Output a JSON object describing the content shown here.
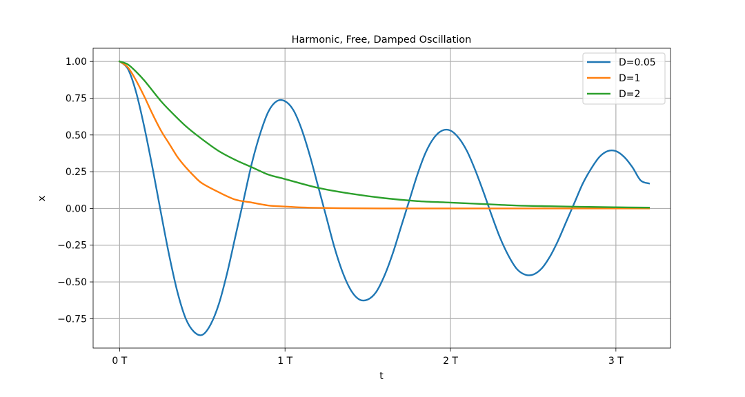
{
  "chart_data": {
    "type": "line",
    "title": "Harmonic, Free, Damped Oscillation",
    "xlabel": "t",
    "ylabel": "x",
    "xlim": [
      -0.16,
      3.33
    ],
    "ylim": [
      -0.95,
      1.09
    ],
    "xticks": [
      {
        "value": 0,
        "label": "0 T"
      },
      {
        "value": 1,
        "label": "1 T"
      },
      {
        "value": 2,
        "label": "2 T"
      },
      {
        "value": 3,
        "label": "3 T"
      }
    ],
    "yticks": [
      {
        "value": 1.0,
        "label": "1.00"
      },
      {
        "value": 0.75,
        "label": "0.75"
      },
      {
        "value": 0.5,
        "label": "0.50"
      },
      {
        "value": 0.25,
        "label": "0.25"
      },
      {
        "value": 0.0,
        "label": "0.00"
      },
      {
        "value": -0.25,
        "label": "−0.25"
      },
      {
        "value": -0.5,
        "label": "−0.50"
      },
      {
        "value": -0.75,
        "label": "−0.75"
      }
    ],
    "grid": true,
    "legend_position": "top-right",
    "series": [
      {
        "name": "D=0.05",
        "color": "#1f77b4",
        "x": [
          0,
          0.05,
          0.1,
          0.15,
          0.2,
          0.25,
          0.3,
          0.35,
          0.4,
          0.45,
          0.5,
          0.55,
          0.6,
          0.65,
          0.7,
          0.75,
          0.8,
          0.85,
          0.9,
          0.95,
          1,
          1.05,
          1.1,
          1.15,
          1.2,
          1.25,
          1.3,
          1.35,
          1.4,
          1.45,
          1.5,
          1.55,
          1.6,
          1.65,
          1.7,
          1.75,
          1.8,
          1.85,
          1.9,
          1.95,
          2,
          2.05,
          2.1,
          2.15,
          2.2,
          2.25,
          2.3,
          2.35,
          2.4,
          2.45,
          2.5,
          2.55,
          2.6,
          2.65,
          2.7,
          2.75,
          2.8,
          2.85,
          2.9,
          2.95,
          3,
          3.05,
          3.1,
          3.15,
          3.2
        ],
        "y": [
          1.0,
          0.95,
          0.79,
          0.55,
          0.27,
          -0.03,
          -0.32,
          -0.57,
          -0.75,
          -0.84,
          -0.86,
          -0.79,
          -0.65,
          -0.44,
          -0.19,
          0.06,
          0.31,
          0.51,
          0.66,
          0.73,
          0.73,
          0.67,
          0.54,
          0.36,
          0.15,
          -0.06,
          -0.27,
          -0.44,
          -0.56,
          -0.62,
          -0.62,
          -0.57,
          -0.46,
          -0.31,
          -0.13,
          0.05,
          0.23,
          0.38,
          0.48,
          0.53,
          0.53,
          0.48,
          0.39,
          0.26,
          0.11,
          -0.05,
          -0.2,
          -0.32,
          -0.41,
          -0.45,
          -0.45,
          -0.41,
          -0.33,
          -0.22,
          -0.09,
          0.04,
          0.17,
          0.27,
          0.35,
          0.39,
          0.39,
          0.35,
          0.28,
          0.19,
          0.17
        ]
      },
      {
        "name": "D=1",
        "color": "#ff7f0e",
        "x": [
          0,
          0.05,
          0.1,
          0.15,
          0.2,
          0.25,
          0.3,
          0.35,
          0.4,
          0.45,
          0.5,
          0.6,
          0.7,
          0.8,
          0.9,
          1,
          1.1,
          1.2,
          1.4,
          1.6,
          1.8,
          2,
          2.4,
          2.8,
          3.2
        ],
        "y": [
          1.0,
          0.96,
          0.87,
          0.76,
          0.64,
          0.53,
          0.44,
          0.35,
          0.28,
          0.22,
          0.17,
          0.11,
          0.06,
          0.04,
          0.02,
          0.013,
          0.007,
          0.004,
          0.001,
          0.0,
          0.0,
          0.0,
          0.0,
          0.0,
          0.0
        ]
      },
      {
        "name": "D=2",
        "color": "#2ca02c",
        "x": [
          0,
          0.05,
          0.1,
          0.15,
          0.2,
          0.25,
          0.3,
          0.4,
          0.5,
          0.6,
          0.7,
          0.8,
          0.9,
          1,
          1.2,
          1.4,
          1.6,
          1.8,
          2,
          2.2,
          2.4,
          2.6,
          2.8,
          3,
          3.2
        ],
        "y": [
          1.0,
          0.98,
          0.93,
          0.87,
          0.8,
          0.73,
          0.67,
          0.56,
          0.47,
          0.39,
          0.33,
          0.28,
          0.23,
          0.2,
          0.14,
          0.1,
          0.07,
          0.05,
          0.04,
          0.03,
          0.02,
          0.015,
          0.011,
          0.008,
          0.006
        ]
      }
    ]
  }
}
